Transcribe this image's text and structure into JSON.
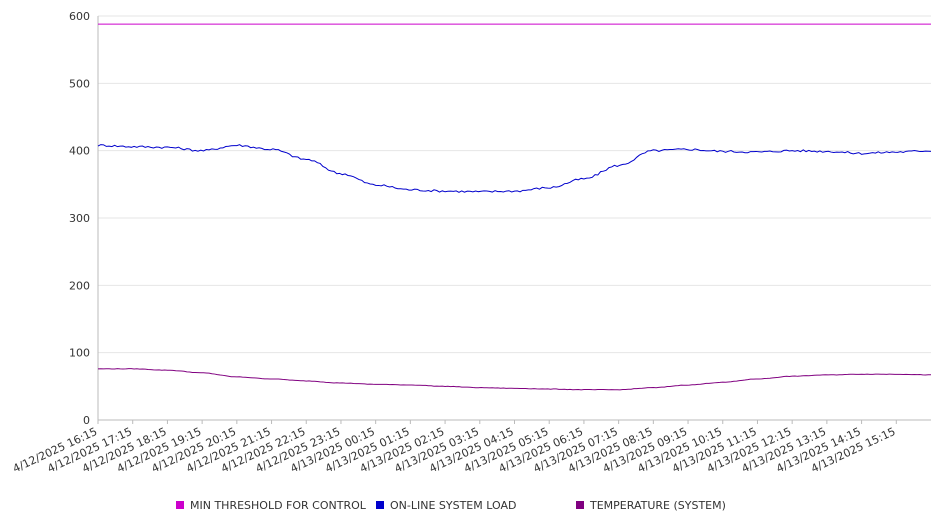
{
  "chart_data": {
    "type": "line",
    "title": "",
    "xlabel": "",
    "ylabel": "",
    "ylim": [
      0,
      600
    ],
    "y_ticks": [
      0,
      100,
      200,
      300,
      400,
      500,
      600
    ],
    "grid": "horizontal",
    "legend_position": "bottom",
    "x_tick_labels": [
      "4/12/2025 16:15",
      "4/12/2025 17:15",
      "4/12/2025 18:15",
      "4/12/2025 19:15",
      "4/12/2025 20:15",
      "4/12/2025 21:15",
      "4/12/2025 22:15",
      "4/12/2025 23:15",
      "4/13/2025 00:15",
      "4/13/2025 01:15",
      "4/13/2025 02:15",
      "4/13/2025 03:15",
      "4/13/2025 04:15",
      "4/13/2025 05:15",
      "4/13/2025 06:15",
      "4/13/2025 07:15",
      "4/13/2025 08:15",
      "4/13/2025 09:15",
      "4/13/2025 10:15",
      "4/13/2025 11:15",
      "4/13/2025 12:15",
      "4/13/2025 13:15",
      "4/13/2025 14:15",
      "4/13/2025 15:15"
    ],
    "x": [
      "4/12/2025 16:15",
      "4/12/2025 17:15",
      "4/12/2025 18:15",
      "4/12/2025 19:15",
      "4/12/2025 20:15",
      "4/12/2025 21:15",
      "4/12/2025 22:15",
      "4/12/2025 23:15",
      "4/13/2025 00:15",
      "4/13/2025 01:15",
      "4/13/2025 02:15",
      "4/13/2025 03:15",
      "4/13/2025 04:15",
      "4/13/2025 05:15",
      "4/13/2025 06:15",
      "4/13/2025 07:15",
      "4/13/2025 08:15",
      "4/13/2025 09:15",
      "4/13/2025 10:15",
      "4/13/2025 11:15",
      "4/13/2025 12:15",
      "4/13/2025 13:15",
      "4/13/2025 14:15",
      "4/13/2025 15:15",
      "4/13/2025 16:00"
    ],
    "series": [
      {
        "name": "MIN THRESHOLD FOR CONTROL",
        "color": "#cc00cc",
        "values": [
          588,
          588,
          588,
          588,
          588,
          588,
          588,
          588,
          588,
          588,
          588,
          588,
          588,
          588,
          588,
          588,
          588,
          588,
          588,
          588,
          588,
          588,
          588,
          588,
          588
        ]
      },
      {
        "name": "ON-LINE SYSTEM LOAD",
        "color": "#0000cc",
        "values": [
          408,
          406,
          405,
          400,
          408,
          402,
          387,
          366,
          349,
          342,
          340,
          339,
          340,
          345,
          358,
          378,
          400,
          402,
          399,
          398,
          400,
          399,
          396,
          398,
          400
        ]
      },
      {
        "name": "TEMPERATURE (SYSTEM)",
        "color": "#800080",
        "values": [
          76,
          76,
          74,
          70,
          64,
          61,
          58,
          55,
          53,
          52,
          50,
          48,
          47,
          46,
          45,
          45,
          48,
          52,
          56,
          61,
          65,
          67,
          68,
          68,
          67
        ]
      }
    ]
  }
}
